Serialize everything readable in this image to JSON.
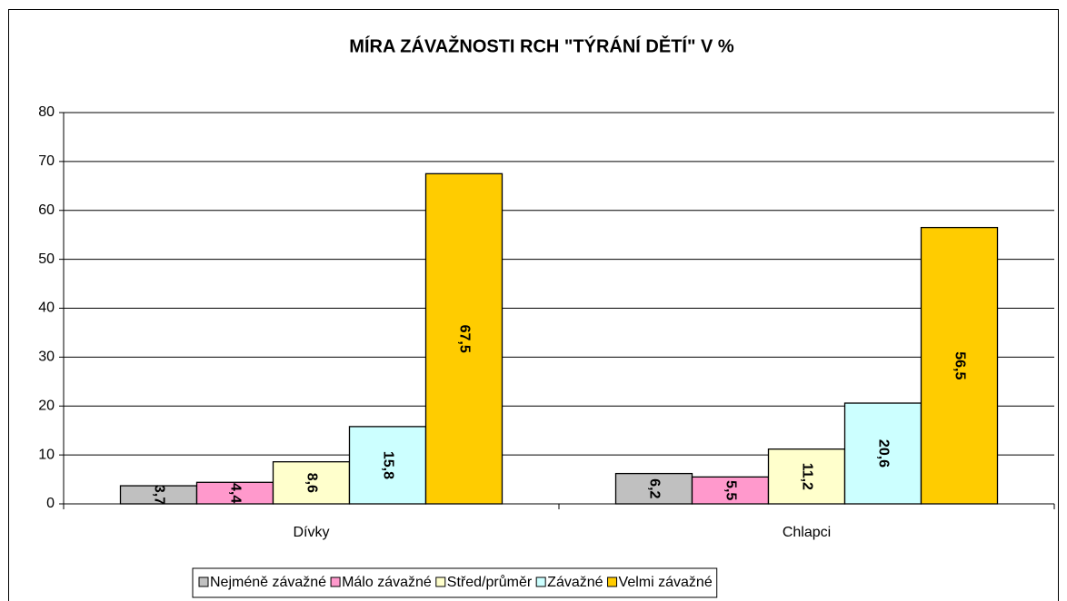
{
  "chart_data": {
    "type": "bar",
    "title": "MÍRA ZÁVAŽNOSTI RCH \"TÝRÁNÍ DĚTÍ\"  V  %",
    "categories": [
      "Dívky",
      "Chlapci"
    ],
    "series": [
      {
        "name": "Nejméně závažné",
        "color": "#c0c0c0",
        "values": [
          3.7,
          6.2
        ],
        "value_labels": [
          "3,7",
          "6,2"
        ]
      },
      {
        "name": "Málo závažné",
        "color": "#ff99cc",
        "values": [
          4.4,
          5.5
        ],
        "value_labels": [
          "4,4",
          "5,5"
        ]
      },
      {
        "name": "Střed/průměr",
        "color": "#ffffcc",
        "values": [
          8.6,
          11.2
        ],
        "value_labels": [
          "8,6",
          "11,2"
        ]
      },
      {
        "name": "Závažné",
        "color": "#ccffff",
        "values": [
          15.8,
          20.6
        ],
        "value_labels": [
          "15,8",
          "20,6"
        ]
      },
      {
        "name": "Velmi závažné",
        "color": "#ffcc00",
        "values": [
          67.5,
          56.5
        ],
        "value_labels": [
          "67,5",
          "56,5"
        ]
      }
    ],
    "ylim": [
      0,
      80
    ],
    "yticks": [
      0,
      10,
      20,
      30,
      40,
      50,
      60,
      70,
      80
    ],
    "grid": true,
    "legend": "bottom"
  }
}
